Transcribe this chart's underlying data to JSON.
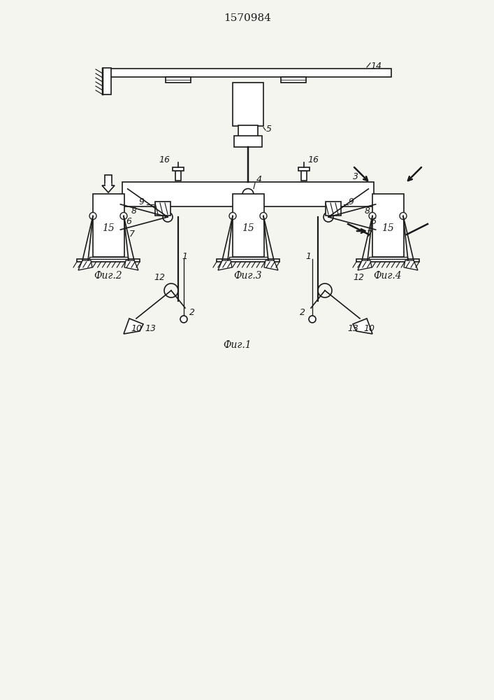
{
  "title": "1570984",
  "fig1_label": "Фиг.1",
  "fig2_label": "Фиг.2",
  "fig3_label": "Фиг.3",
  "fig4_label": "Фиг.4",
  "label_15": "15",
  "bg_color": "#f5f5f0",
  "line_color": "#1a1a1a",
  "lw": 1.2
}
